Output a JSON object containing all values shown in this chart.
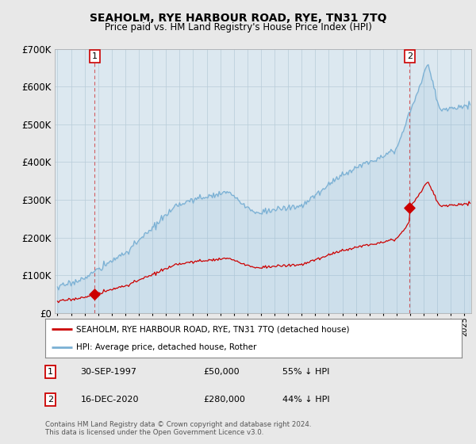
{
  "title": "SEAHOLM, RYE HARBOUR ROAD, RYE, TN31 7TQ",
  "subtitle": "Price paid vs. HM Land Registry's House Price Index (HPI)",
  "hpi_color": "#7ab0d4",
  "price_color": "#cc0000",
  "background_color": "#e8e8e8",
  "plot_bg_color": "#dce8f0",
  "ylim": [
    0,
    700000
  ],
  "yticks": [
    0,
    100000,
    200000,
    300000,
    400000,
    500000,
    600000,
    700000
  ],
  "sale1_date": 1997.747,
  "sale1_price": 50000,
  "sale2_date": 2020.956,
  "sale2_price": 280000,
  "legend_label_price": "SEAHOLM, RYE HARBOUR ROAD, RYE, TN31 7TQ (detached house)",
  "legend_label_hpi": "HPI: Average price, detached house, Rother",
  "footer": "Contains HM Land Registry data © Crown copyright and database right 2024.\nThis data is licensed under the Open Government Licence v3.0.",
  "xmin": 1994.8,
  "xmax": 2025.5
}
